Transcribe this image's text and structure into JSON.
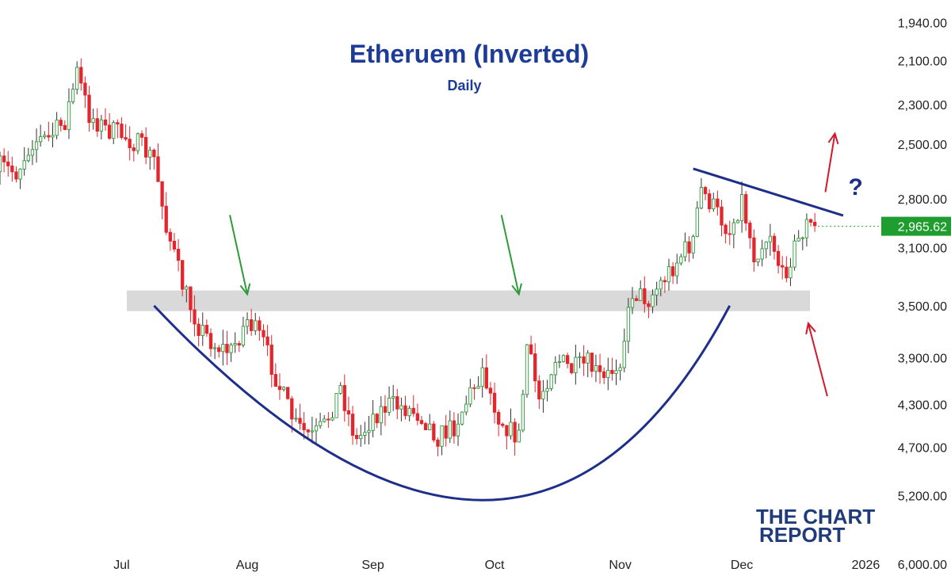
{
  "chart_data": {
    "type": "candlestick",
    "title": "Etheruem (Inverted)",
    "subtitle": "Daily",
    "y_axis": {
      "inverted": true,
      "scale": "log",
      "range": [
        1850,
        6150
      ],
      "tick_labels": [
        "1,940.00",
        "2,100.00",
        "2,300.00",
        "2,500.00",
        "2,800.00",
        "3,100.00",
        "3,500.00",
        "3,900.00",
        "4,300.00",
        "4,700.00",
        "5,200.00",
        "6,000.00"
      ],
      "tick_values": [
        1940,
        2100,
        2300,
        2500,
        2800,
        3100,
        3500,
        3900,
        4300,
        4700,
        5200,
        6000
      ]
    },
    "x_axis": {
      "tick_labels": [
        "Jul",
        "Aug",
        "Sep",
        "Oct",
        "Nov",
        "Dec",
        "2026"
      ],
      "tick_dates": [
        "2025-07-01",
        "2025-08-01",
        "2025-09-01",
        "2025-10-01",
        "2025-11-01",
        "2025-12-01",
        "2026-01-01"
      ],
      "range": [
        "2025-06-01",
        "2026-01-04"
      ]
    },
    "last_price_label": "2,965.62",
    "last_price": 2965.62,
    "close_series": {
      "start_date": "2025-06-01",
      "points": [
        [
          "2025-06-01",
          2620
        ],
        [
          "2025-06-05",
          2650
        ],
        [
          "2025-06-09",
          2480
        ],
        [
          "2025-06-13",
          2470
        ],
        [
          "2025-06-17",
          2380
        ],
        [
          "2025-06-20",
          2150
        ],
        [
          "2025-06-23",
          2350
        ],
        [
          "2025-06-27",
          2420
        ],
        [
          "2025-07-01",
          2450
        ],
        [
          "2025-07-05",
          2500
        ],
        [
          "2025-07-09",
          2580
        ],
        [
          "2025-07-12",
          2950
        ],
        [
          "2025-07-16",
          3350
        ],
        [
          "2025-07-20",
          3650
        ],
        [
          "2025-07-24",
          3800
        ],
        [
          "2025-07-28",
          3850
        ],
        [
          "2025-08-01",
          3600
        ],
        [
          "2025-08-05",
          3780
        ],
        [
          "2025-08-09",
          4150
        ],
        [
          "2025-08-13",
          4500
        ],
        [
          "2025-08-17",
          4600
        ],
        [
          "2025-08-20",
          4500
        ],
        [
          "2025-08-24",
          4150
        ],
        [
          "2025-08-28",
          4650
        ],
        [
          "2025-09-01",
          4400
        ],
        [
          "2025-09-05",
          4300
        ],
        [
          "2025-09-09",
          4330
        ],
        [
          "2025-09-13",
          4400
        ],
        [
          "2025-09-17",
          4600
        ],
        [
          "2025-09-21",
          4500
        ],
        [
          "2025-09-25",
          4200
        ],
        [
          "2025-09-28",
          4000
        ],
        [
          "2025-10-02",
          4400
        ],
        [
          "2025-10-05",
          4550
        ],
        [
          "2025-10-07",
          4600
        ],
        [
          "2025-10-09",
          3800
        ],
        [
          "2025-10-12",
          4250
        ],
        [
          "2025-10-16",
          3900
        ],
        [
          "2025-10-20",
          4000
        ],
        [
          "2025-10-24",
          3950
        ],
        [
          "2025-10-28",
          4100
        ],
        [
          "2025-11-01",
          3900
        ],
        [
          "2025-11-04",
          3400
        ],
        [
          "2025-11-08",
          3450
        ],
        [
          "2025-11-12",
          3300
        ],
        [
          "2025-11-16",
          3150
        ],
        [
          "2025-11-19",
          3050
        ],
        [
          "2025-11-21",
          2750
        ],
        [
          "2025-11-24",
          2850
        ],
        [
          "2025-11-28",
          3000
        ],
        [
          "2025-12-01",
          2800
        ],
        [
          "2025-12-04",
          3150
        ],
        [
          "2025-12-08",
          3000
        ],
        [
          "2025-12-11",
          3300
        ],
        [
          "2025-12-14",
          3100
        ],
        [
          "2025-12-17",
          2950
        ],
        [
          "2025-12-19",
          2980
        ]
      ]
    },
    "annotations": {
      "support_zone": {
        "low": 3390,
        "high": 3540
      },
      "rounding_bottom": {
        "start": [
          "2025-07-09",
          3500
        ],
        "bottom": [
          "2025-09-28",
          5250
        ],
        "end": [
          "2025-11-28",
          3500
        ]
      },
      "downtrend_line": {
        "start": [
          "2025-11-19",
          2630
        ],
        "end": [
          "2025-12-26",
          2900
        ]
      },
      "green_arrows": [
        {
          "date": "2025-08-01",
          "price": 3440
        },
        {
          "date": "2025-10-07",
          "price": 3440
        }
      ],
      "red_arrow_down": {
        "date": "2025-12-17",
        "price": 3560
      },
      "red_arrow_up": {
        "date": "2025-12-22",
        "price": 2460
      },
      "question_mark": "?"
    },
    "colors": {
      "up_candle": "#e3262d",
      "down_candle": "#ffffff",
      "down_candle_border": "#2f9a3a",
      "last_price_badge": "#1f9e2f",
      "annotation_line": "#1e2f8a",
      "title": "#1d3c97",
      "support_zone": "#d9d9d9",
      "green_arrow": "#2f9a3a",
      "red_arrow": "#d3182c"
    }
  },
  "logo": {
    "line1": "THE CHART",
    "line2": "REPORT"
  }
}
